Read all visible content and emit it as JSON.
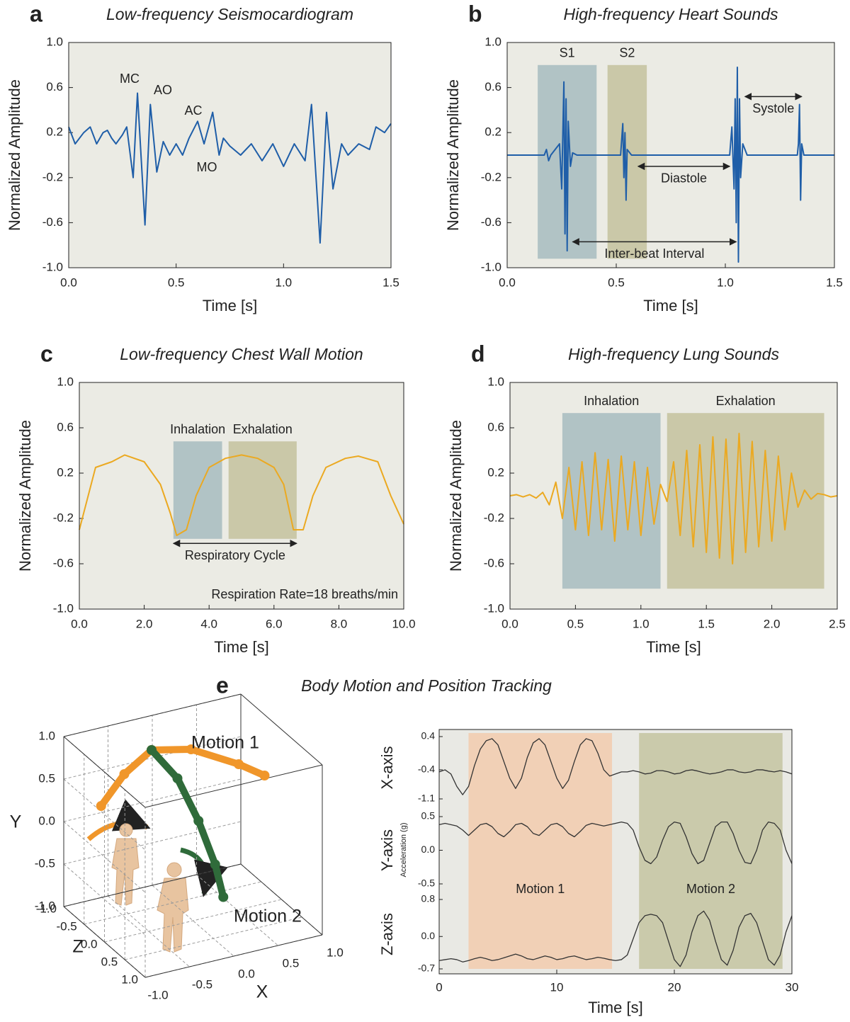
{
  "chart_data": [
    {
      "type": "line",
      "panel_label": "a",
      "title": "Low-frequency Seismocardiogram",
      "x_label": "Time [s]",
      "y_label": "Normalized Amplitude",
      "color": "#1f5ea8",
      "xlim": [
        0,
        1.5
      ],
      "xticks": [
        {
          "value": 0,
          "label": "0.0"
        },
        0.5,
        {
          "value": 1,
          "label": "1.0"
        },
        1.5
      ],
      "ylim": [
        -1,
        1
      ],
      "yticks": [
        {
          "value": -1,
          "label": "-1.0"
        },
        -0.6,
        -0.2,
        0.2,
        0.6,
        {
          "value": 1,
          "label": "1.0"
        }
      ],
      "x": [
        0,
        0.03,
        0.07,
        0.1,
        0.13,
        0.16,
        0.18,
        0.2,
        0.22,
        0.25,
        0.27,
        0.3,
        0.32,
        0.355,
        0.38,
        0.41,
        0.44,
        0.47,
        0.5,
        0.53,
        0.56,
        0.6,
        0.63,
        0.67,
        0.7,
        0.72,
        0.75,
        0.8,
        0.85,
        0.9,
        0.95,
        1.0,
        1.05,
        1.1,
        1.13,
        1.17,
        1.2,
        1.23,
        1.27,
        1.3,
        1.35,
        1.4,
        1.43,
        1.47,
        1.5
      ],
      "values": [
        0.25,
        0.1,
        0.2,
        0.25,
        0.1,
        0.2,
        0.22,
        0.15,
        0.1,
        0.18,
        0.25,
        -0.2,
        0.55,
        -0.62,
        0.45,
        -0.15,
        0.12,
        0.0,
        0.1,
        0.0,
        0.15,
        0.3,
        0.1,
        0.38,
        0.0,
        0.15,
        0.08,
        0.0,
        0.1,
        -0.05,
        0.1,
        -0.1,
        0.1,
        -0.05,
        0.45,
        -0.78,
        0.38,
        -0.3,
        0.1,
        0.0,
        0.1,
        0.05,
        0.25,
        0.2,
        0.28
      ],
      "annotations": [
        "MC",
        "AO",
        "AC",
        "MO"
      ]
    },
    {
      "type": "line",
      "panel_label": "b",
      "title": "High-frequency Heart Sounds",
      "x_label": "Time [s]",
      "y_label": "Normalized Amplitude",
      "color": "#1f5ea8",
      "xlim": [
        0,
        1.5
      ],
      "xticks": [
        {
          "value": 0,
          "label": "0.0"
        },
        0.5,
        {
          "value": 1,
          "label": "1.0"
        },
        1.5
      ],
      "ylim": [
        -1,
        1
      ],
      "yticks": [
        {
          "value": -1,
          "label": "-1.0"
        },
        -0.6,
        -0.2,
        0.2,
        0.6,
        {
          "value": 1,
          "label": "1.0"
        }
      ],
      "x": [
        0,
        0.17,
        0.18,
        0.19,
        0.2,
        0.24,
        0.25,
        0.26,
        0.265,
        0.27,
        0.275,
        0.28,
        0.29,
        0.3,
        0.32,
        0.52,
        0.53,
        0.535,
        0.54,
        0.545,
        0.55,
        0.57,
        1.02,
        1.03,
        1.04,
        1.045,
        1.05,
        1.055,
        1.06,
        1.065,
        1.07,
        1.08,
        1.1,
        1.33,
        1.335,
        1.34,
        1.345,
        1.35,
        1.36,
        1.5
      ],
      "values": [
        0,
        0,
        0.05,
        -0.05,
        0,
        0.1,
        -0.3,
        0.65,
        -0.7,
        0.5,
        -0.85,
        0.3,
        -0.1,
        0.02,
        0,
        0,
        0.28,
        -0.2,
        0.2,
        -0.4,
        0.05,
        0,
        0,
        0.25,
        -0.3,
        0.5,
        -0.6,
        0.78,
        -0.95,
        0.5,
        -0.2,
        0.1,
        0,
        0,
        0.1,
        0.45,
        -0.4,
        0.1,
        0,
        0
      ],
      "regions": [
        {
          "label": "S1",
          "x": [
            0.14,
            0.41
          ],
          "y": [
            -0.92,
            0.8
          ],
          "color": "#a7bcc0"
        },
        {
          "label": "S2",
          "x": [
            0.46,
            0.64
          ],
          "y": [
            -0.92,
            0.8
          ],
          "color": "#c4c29e"
        }
      ],
      "arrows": [
        {
          "text": "Systole",
          "x": [
            1.09,
            1.35
          ],
          "y": 0.52
        },
        {
          "text": "Diastole",
          "x": [
            0.6,
            1.02
          ],
          "y": -0.1
        },
        {
          "text": "Inter-beat Interval",
          "x": [
            0.3,
            1.05
          ],
          "y": -0.77
        }
      ]
    },
    {
      "type": "line",
      "panel_label": "c",
      "title": "Low-frequency Chest Wall Motion",
      "x_label": "Time [s]",
      "y_label": "Normalized Amplitude",
      "color": "#eba921",
      "xlim": [
        0,
        10
      ],
      "xticks": [
        {
          "value": 0,
          "label": "0.0"
        },
        {
          "value": 2,
          "label": "2.0"
        },
        {
          "value": 4,
          "label": "4.0"
        },
        {
          "value": 6,
          "label": "6.0"
        },
        {
          "value": 8,
          "label": "8.0"
        },
        {
          "value": 10,
          "label": "10.0"
        }
      ],
      "ylim": [
        -1,
        1
      ],
      "yticks": [
        {
          "value": -1,
          "label": "-1.0"
        },
        -0.6,
        -0.2,
        0.2,
        0.6,
        {
          "value": 1,
          "label": "1.0"
        }
      ],
      "x": [
        0,
        0.5,
        1,
        1.4,
        2,
        2.5,
        2.8,
        3,
        3.3,
        3.6,
        4,
        4.5,
        5,
        5.5,
        6,
        6.3,
        6.6,
        6.9,
        7.2,
        7.6,
        8.2,
        8.6,
        9.2,
        9.6,
        10
      ],
      "values": [
        -0.3,
        0.25,
        0.3,
        0.36,
        0.3,
        0.1,
        -0.15,
        -0.35,
        -0.3,
        0,
        0.25,
        0.33,
        0.36,
        0.33,
        0.25,
        0.1,
        -0.3,
        -0.3,
        0,
        0.25,
        0.33,
        0.35,
        0.3,
        0,
        -0.25
      ],
      "regions": [
        {
          "label": "Inhalation",
          "x": [
            2.9,
            4.4
          ],
          "y": [
            -0.38,
            0.48
          ],
          "color": "#a7bcc0"
        },
        {
          "label": "Exhalation",
          "x": [
            4.6,
            6.7
          ],
          "y": [
            -0.38,
            0.48
          ],
          "color": "#c4c29e"
        }
      ],
      "arrows": [
        {
          "text": "Respiratory Cycle",
          "x": [
            2.9,
            6.7
          ],
          "y": -0.42
        }
      ],
      "note": "Respiration Rate=18 breaths/min"
    },
    {
      "type": "line",
      "panel_label": "d",
      "title": "High-frequency Lung Sounds",
      "x_label": "Time [s]",
      "y_label": "Normalized Amplitude",
      "color": "#eba921",
      "xlim": [
        0,
        2.5
      ],
      "xticks": [
        {
          "value": 0,
          "label": "0.0"
        },
        0.5,
        {
          "value": 1,
          "label": "1.0"
        },
        1.5,
        {
          "value": 2,
          "label": "2.0"
        },
        2.5
      ],
      "ylim": [
        -1,
        1
      ],
      "yticks": [
        {
          "value": -1,
          "label": "-1.0"
        },
        -0.6,
        -0.2,
        0.2,
        0.6,
        {
          "value": 1,
          "label": "1.0"
        }
      ],
      "x": [
        0,
        0.05,
        0.1,
        0.15,
        0.2,
        0.25,
        0.3,
        0.35,
        0.4,
        0.45,
        0.5,
        0.55,
        0.6,
        0.65,
        0.7,
        0.75,
        0.8,
        0.85,
        0.9,
        0.95,
        1.0,
        1.05,
        1.1,
        1.15,
        1.2,
        1.25,
        1.3,
        1.35,
        1.4,
        1.45,
        1.5,
        1.55,
        1.6,
        1.65,
        1.7,
        1.75,
        1.8,
        1.85,
        1.9,
        1.95,
        2.0,
        2.05,
        2.1,
        2.15,
        2.2,
        2.25,
        2.3,
        2.35,
        2.4,
        2.45,
        2.5
      ],
      "values": [
        0,
        0.01,
        -0.01,
        0.01,
        -0.02,
        0.03,
        -0.08,
        0.12,
        -0.2,
        0.25,
        -0.3,
        0.3,
        -0.35,
        0.38,
        -0.3,
        0.32,
        -0.4,
        0.35,
        -0.3,
        0.3,
        -0.35,
        0.25,
        -0.25,
        0.1,
        -0.05,
        0.3,
        -0.35,
        0.4,
        -0.45,
        0.45,
        -0.5,
        0.52,
        -0.55,
        0.5,
        -0.6,
        0.55,
        -0.5,
        0.48,
        -0.45,
        0.4,
        -0.4,
        0.35,
        -0.3,
        0.2,
        -0.1,
        0.05,
        -0.03,
        0.02,
        0.01,
        -0.01,
        0
      ],
      "regions": [
        {
          "label": "Inhalation",
          "x": [
            0.4,
            1.15
          ],
          "y": [
            -0.82,
            0.73
          ],
          "color": "#a7bcc0"
        },
        {
          "label": "Exhalation",
          "x": [
            1.2,
            2.4
          ],
          "y": [
            -0.82,
            0.73
          ],
          "color": "#c4c29e"
        }
      ]
    },
    {
      "type": "scatter3d",
      "panel_label": "e",
      "title": "Body Motion and Position Tracking",
      "x_label": "X",
      "y_label": "Y",
      "z_label": "Z",
      "xlim": [
        -1,
        1
      ],
      "ylim": [
        -1,
        1
      ],
      "zlim": [
        -1,
        1
      ],
      "xticks": [
        {
          "value": -1,
          "label": "-1.0"
        },
        -0.5,
        {
          "value": 0,
          "label": "0.0"
        },
        0.5,
        {
          "value": 1,
          "label": "1.0"
        }
      ],
      "yticks": [
        {
          "value": -1,
          "label": "-1.0"
        },
        -0.5,
        {
          "value": 0,
          "label": "0.0"
        },
        0.5,
        {
          "value": 1,
          "label": "1.0"
        }
      ],
      "zticks": [
        {
          "value": -1,
          "label": "-1.0"
        },
        -0.5,
        {
          "value": 0,
          "label": "0.0"
        },
        0.5,
        {
          "value": 1,
          "label": "1.0"
        }
      ],
      "series": [
        {
          "name": "Motion 1",
          "color": "#f0962a",
          "x": [
            -0.9,
            -0.5,
            -0.1,
            0.3,
            0.7,
            0.9
          ],
          "y": [
            0.45,
            0.6,
            0.7,
            0.65,
            0.5,
            0.4
          ],
          "z": [
            -0.3,
            -0.6,
            -0.8,
            -0.7,
            -0.4,
            -0.2
          ]
        },
        {
          "name": "Motion 2",
          "color": "#2f6b3a",
          "x": [
            -0.1,
            0.1,
            0.2,
            0.25,
            0.25
          ],
          "y": [
            0.7,
            0.4,
            0.0,
            -0.4,
            -0.7
          ],
          "z": [
            -0.8,
            -0.6,
            -0.3,
            0.0,
            0.2
          ]
        }
      ]
    },
    {
      "type": "strip",
      "x_label": "Time [s]",
      "y_label": "Acceleration (g)",
      "xlim": [
        0,
        30
      ],
      "xticks": [
        0,
        10,
        20,
        30
      ],
      "x": [
        0,
        0.5,
        1,
        1.5,
        2,
        2.5,
        3,
        3.5,
        4,
        4.5,
        5,
        5.5,
        6,
        6.5,
        7,
        7.5,
        8,
        8.5,
        9,
        9.5,
        10,
        10.5,
        11,
        11.5,
        12,
        12.5,
        13,
        13.5,
        14,
        14.5,
        15,
        15.5,
        16,
        16.5,
        17,
        17.5,
        18,
        18.5,
        19,
        19.5,
        20,
        20.5,
        21,
        21.5,
        22,
        22.5,
        23,
        23.5,
        24,
        24.5,
        25,
        25.5,
        26,
        26.5,
        27,
        27.5,
        28,
        28.5,
        29,
        29.5,
        30
      ],
      "regions": [
        {
          "label": "Motion 1",
          "x": [
            2.5,
            14.7
          ],
          "color": "#f2cdb0"
        },
        {
          "label": "Motion 2",
          "x": [
            17,
            29.2
          ],
          "color": "#c7c6a4"
        }
      ],
      "series": [
        {
          "name": "X-axis",
          "color": "#333333",
          "ylim": [
            -1.1,
            0.4
          ],
          "yticks": [
            0.4,
            -0.4,
            -1.1
          ],
          "values": [
            -0.45,
            -0.4,
            -0.5,
            -0.8,
            -1.0,
            -0.8,
            -0.3,
            0.1,
            0.3,
            0.35,
            0.2,
            -0.2,
            -0.6,
            -0.85,
            -0.6,
            -0.1,
            0.25,
            0.35,
            0.2,
            -0.2,
            -0.6,
            -0.85,
            -0.65,
            -0.2,
            0.2,
            0.35,
            0.3,
            0.0,
            -0.4,
            -0.55,
            -0.5,
            -0.45,
            -0.45,
            -0.42,
            -0.45,
            -0.5,
            -0.48,
            -0.42,
            -0.42,
            -0.45,
            -0.5,
            -0.48,
            -0.42,
            -0.4,
            -0.43,
            -0.47,
            -0.5,
            -0.48,
            -0.45,
            -0.4,
            -0.4,
            -0.45,
            -0.47,
            -0.45,
            -0.4,
            -0.4,
            -0.43,
            -0.45,
            -0.42,
            -0.45,
            -0.5
          ]
        },
        {
          "name": "Y-axis",
          "color": "#333333",
          "ylim": [
            -0.5,
            0.5
          ],
          "yticks": [
            0.5,
            {
              "value": 0,
              "label": "0.0"
            },
            -0.5
          ],
          "values": [
            0.38,
            0.4,
            0.38,
            0.36,
            0.3,
            0.22,
            0.3,
            0.38,
            0.4,
            0.35,
            0.25,
            0.2,
            0.28,
            0.38,
            0.4,
            0.35,
            0.25,
            0.22,
            0.3,
            0.38,
            0.4,
            0.35,
            0.25,
            0.2,
            0.28,
            0.37,
            0.4,
            0.38,
            0.36,
            0.38,
            0.4,
            0.42,
            0.4,
            0.3,
            0.05,
            -0.15,
            -0.2,
            -0.1,
            0.15,
            0.35,
            0.42,
            0.4,
            0.2,
            -0.05,
            -0.2,
            -0.15,
            0.1,
            0.35,
            0.42,
            0.42,
            0.25,
            0.0,
            -0.18,
            -0.2,
            0.0,
            0.3,
            0.42,
            0.4,
            0.3,
            0.0,
            -0.2
          ]
        },
        {
          "name": "Z-axis",
          "color": "#333333",
          "ylim": [
            -0.7,
            0.8
          ],
          "yticks": [
            0.8,
            {
              "value": 0,
              "label": "0.0"
            },
            -0.7
          ],
          "values": [
            -0.52,
            -0.5,
            -0.48,
            -0.5,
            -0.55,
            -0.52,
            -0.48,
            -0.45,
            -0.48,
            -0.52,
            -0.5,
            -0.46,
            -0.42,
            -0.38,
            -0.42,
            -0.48,
            -0.5,
            -0.46,
            -0.42,
            -0.45,
            -0.5,
            -0.48,
            -0.44,
            -0.42,
            -0.46,
            -0.5,
            -0.48,
            -0.45,
            -0.47,
            -0.5,
            -0.52,
            -0.5,
            -0.4,
            -0.05,
            0.3,
            0.45,
            0.48,
            0.45,
            0.3,
            -0.1,
            -0.5,
            -0.65,
            -0.4,
            0.1,
            0.45,
            0.55,
            0.35,
            -0.1,
            -0.5,
            -0.62,
            -0.3,
            0.2,
            0.45,
            0.5,
            0.3,
            -0.1,
            -0.5,
            -0.62,
            -0.4,
            0.1,
            0.45
          ]
        }
      ]
    }
  ]
}
